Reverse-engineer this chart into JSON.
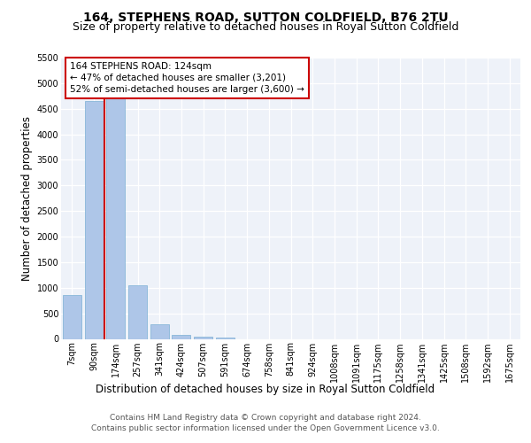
{
  "title": "164, STEPHENS ROAD, SUTTON COLDFIELD, B76 2TU",
  "subtitle": "Size of property relative to detached houses in Royal Sutton Coldfield",
  "xlabel": "Distribution of detached houses by size in Royal Sutton Coldfield",
  "ylabel": "Number of detached properties",
  "categories": [
    "7sqm",
    "90sqm",
    "174sqm",
    "257sqm",
    "341sqm",
    "424sqm",
    "507sqm",
    "591sqm",
    "674sqm",
    "758sqm",
    "841sqm",
    "924sqm",
    "1008sqm",
    "1091sqm",
    "1175sqm",
    "1258sqm",
    "1341sqm",
    "1425sqm",
    "1508sqm",
    "1592sqm",
    "1675sqm"
  ],
  "values": [
    850,
    4650,
    5480,
    1050,
    290,
    80,
    50,
    25,
    0,
    0,
    0,
    0,
    0,
    0,
    0,
    0,
    0,
    0,
    0,
    0,
    0
  ],
  "bar_color": "#aec6e8",
  "bar_edge_color": "#7aafd4",
  "property_line_color": "#cc0000",
  "annotation_text": "164 STEPHENS ROAD: 124sqm\n← 47% of detached houses are smaller (3,201)\n52% of semi-detached houses are larger (3,600) →",
  "annotation_box_color": "#ffffff",
  "annotation_border_color": "#cc0000",
  "ylim_max": 5500,
  "yticks": [
    0,
    500,
    1000,
    1500,
    2000,
    2500,
    3000,
    3500,
    4000,
    4500,
    5000,
    5500
  ],
  "footer_line1": "Contains HM Land Registry data © Crown copyright and database right 2024.",
  "footer_line2": "Contains public sector information licensed under the Open Government Licence v3.0.",
  "bg_color": "#eef2f9",
  "title_fontsize": 10,
  "subtitle_fontsize": 9,
  "axis_label_fontsize": 8.5,
  "tick_fontsize": 7,
  "footer_fontsize": 6.5,
  "annotation_fontsize": 7.5
}
